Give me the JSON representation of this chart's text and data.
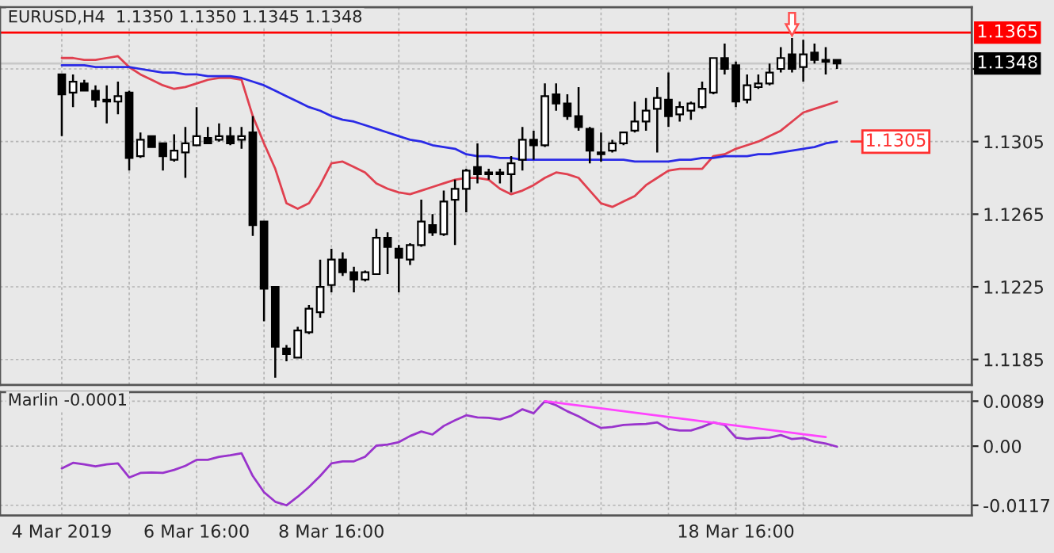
{
  "chart_data": [
    {
      "type": "candlestick",
      "title": "EURUSD,H4  1.1350 1.1350 1.1345 1.1348",
      "categories": [
        null,
        null,
        null,
        null,
        null,
        null,
        null,
        null,
        null,
        null,
        null,
        null,
        null,
        null,
        null,
        null,
        null,
        null,
        null,
        null,
        null,
        null,
        null,
        null,
        null,
        null,
        null,
        null,
        null,
        null,
        null,
        null,
        null,
        null,
        null,
        null,
        null,
        null,
        null,
        null,
        null,
        null,
        null,
        null,
        null,
        null,
        null,
        null,
        null,
        null,
        null,
        null,
        null,
        null,
        null,
        null,
        null,
        null,
        null,
        null,
        null,
        null,
        null,
        null,
        null,
        null,
        null,
        null,
        null,
        null
      ],
      "ohlc": [
        [
          1.1342,
          1.1342,
          1.1308,
          1.1331
        ],
        [
          1.1332,
          1.1342,
          1.1324,
          1.1338
        ],
        [
          1.1337,
          1.1339,
          1.1333,
          1.1333
        ],
        [
          1.1333,
          1.1336,
          1.1324,
          1.1328
        ],
        [
          1.1328,
          1.1336,
          1.1315,
          1.1327
        ],
        [
          1.1327,
          1.1338,
          1.132,
          1.133
        ],
        [
          1.1332,
          1.1333,
          1.1289,
          1.1296
        ],
        [
          1.1297,
          1.131,
          1.1296,
          1.1306
        ],
        [
          1.1308,
          1.1308,
          1.1302,
          1.1302
        ],
        [
          1.1304,
          1.1304,
          1.1289,
          1.1297
        ],
        [
          1.1295,
          1.1309,
          1.1294,
          1.13
        ],
        [
          1.1299,
          1.1313,
          1.1285,
          1.1304
        ],
        [
          1.1303,
          1.1324,
          1.1303,
          1.1308
        ],
        [
          1.1307,
          1.1313,
          1.1304,
          1.1304
        ],
        [
          1.1306,
          1.1315,
          1.1305,
          1.1308
        ],
        [
          1.1308,
          1.1313,
          1.1303,
          1.1304
        ],
        [
          1.1306,
          1.1313,
          1.1301,
          1.1308
        ],
        [
          1.131,
          1.1319,
          1.1253,
          1.1259
        ],
        [
          1.1261,
          1.1261,
          1.1206,
          1.1224
        ],
        [
          1.1225,
          1.1225,
          1.1175,
          1.1192
        ],
        [
          1.1191,
          1.1193,
          1.1184,
          1.1188
        ],
        [
          1.1186,
          1.1203,
          1.1186,
          1.1201
        ],
        [
          1.12,
          1.1215,
          1.1199,
          1.1213
        ],
        [
          1.1211,
          1.124,
          1.1208,
          1.1225
        ],
        [
          1.1226,
          1.1246,
          1.1222,
          1.124
        ],
        [
          1.124,
          1.1244,
          1.1231,
          1.1233
        ],
        [
          1.1233,
          1.1236,
          1.1222,
          1.1229
        ],
        [
          1.1229,
          1.1234,
          1.1228,
          1.1233
        ],
        [
          1.1232,
          1.1257,
          1.1232,
          1.1252
        ],
        [
          1.1252,
          1.1255,
          1.1232,
          1.1247
        ],
        [
          1.1246,
          1.1248,
          1.1222,
          1.1241
        ],
        [
          1.124,
          1.1249,
          1.1237,
          1.1248
        ],
        [
          1.1248,
          1.1273,
          1.1247,
          1.1261
        ],
        [
          1.1259,
          1.1265,
          1.1253,
          1.1255
        ],
        [
          1.1254,
          1.1278,
          1.1253,
          1.1272
        ],
        [
          1.1273,
          1.1284,
          1.1248,
          1.1279
        ],
        [
          1.1279,
          1.129,
          1.1266,
          1.1289
        ],
        [
          1.1291,
          1.1304,
          1.1282,
          1.1287
        ],
        [
          1.1288,
          1.129,
          1.1284,
          1.1287
        ],
        [
          1.1288,
          1.129,
          1.1282,
          1.1287
        ],
        [
          1.1287,
          1.1297,
          1.1277,
          1.1293
        ],
        [
          1.1295,
          1.1313,
          1.1289,
          1.1306
        ],
        [
          1.1306,
          1.1311,
          1.1295,
          1.1303
        ],
        [
          1.1303,
          1.1337,
          1.1302,
          1.133
        ],
        [
          1.1331,
          1.1337,
          1.1322,
          1.1326
        ],
        [
          1.1326,
          1.1331,
          1.1317,
          1.1319
        ],
        [
          1.1319,
          1.1335,
          1.1311,
          1.1313
        ],
        [
          1.1312,
          1.1313,
          1.1293,
          1.13
        ],
        [
          1.1299,
          1.131,
          1.1294,
          1.1298
        ],
        [
          1.13,
          1.1306,
          1.1299,
          1.1304
        ],
        [
          1.1304,
          1.131,
          1.1303,
          1.131
        ],
        [
          1.1311,
          1.1327,
          1.131,
          1.1316
        ],
        [
          1.1316,
          1.1329,
          1.1311,
          1.1322
        ],
        [
          1.1323,
          1.1335,
          1.1299,
          1.1329
        ],
        [
          1.1328,
          1.1343,
          1.1313,
          1.1319
        ],
        [
          1.132,
          1.1327,
          1.1316,
          1.1324
        ],
        [
          1.1322,
          1.1327,
          1.1317,
          1.1326
        ],
        [
          1.1324,
          1.1338,
          1.1323,
          1.1334
        ],
        [
          1.1332,
          1.1351,
          1.1331,
          1.1351
        ],
        [
          1.1351,
          1.1359,
          1.1342,
          1.1345
        ],
        [
          1.1347,
          1.1349,
          1.1324,
          1.1327
        ],
        [
          1.1328,
          1.1342,
          1.1326,
          1.1336
        ],
        [
          1.1335,
          1.1342,
          1.1334,
          1.1337
        ],
        [
          1.1337,
          1.1348,
          1.1336,
          1.1343
        ],
        [
          1.1345,
          1.1357,
          1.1343,
          1.1351
        ],
        [
          1.1353,
          1.1362,
          1.1343,
          1.1345
        ],
        [
          1.1346,
          1.1361,
          1.1338,
          1.1353
        ],
        [
          1.1354,
          1.1359,
          1.1348,
          1.135
        ],
        [
          1.135,
          1.1357,
          1.1342,
          1.1349
        ],
        [
          1.135,
          1.135,
          1.1345,
          1.1348
        ]
      ],
      "series": [
        {
          "type": "line",
          "color": "#e0404f",
          "values": [
            1.1351,
            1.1351,
            1.135,
            1.135,
            1.1351,
            1.1352,
            1.1346,
            1.1342,
            1.1339,
            1.1336,
            1.1334,
            1.1335,
            1.1337,
            1.1339,
            1.134,
            1.134,
            1.1339,
            1.1319,
            1.1304,
            1.129,
            1.1271,
            1.1268,
            1.1271,
            1.1281,
            1.1293,
            1.1294,
            1.1291,
            1.1288,
            1.1282,
            1.1279,
            1.1277,
            1.1276,
            1.1278,
            1.128,
            1.1282,
            1.1284,
            1.1285,
            1.1285,
            1.1284,
            1.1279,
            1.1276,
            1.1278,
            1.1281,
            1.1285,
            1.1288,
            1.1287,
            1.1285,
            1.1278,
            1.1271,
            1.1269,
            1.1272,
            1.1275,
            1.1281,
            1.1285,
            1.1289,
            1.129,
            1.129,
            1.129,
            1.1297,
            1.1298,
            1.1301,
            1.1303,
            1.1305,
            1.1308,
            1.1311,
            1.1316,
            1.1321,
            1.1323,
            1.1325,
            1.1327
          ]
        },
        {
          "type": "line",
          "color": "#2a2ae6",
          "values": [
            1.1347,
            1.1347,
            1.1347,
            1.1346,
            1.1346,
            1.1346,
            1.1346,
            1.1345,
            1.1344,
            1.1343,
            1.1343,
            1.1342,
            1.1342,
            1.1341,
            1.1341,
            1.1341,
            1.134,
            1.1338,
            1.1336,
            1.1333,
            1.133,
            1.1327,
            1.1324,
            1.1322,
            1.1319,
            1.1317,
            1.1316,
            1.1314,
            1.1312,
            1.131,
            1.1308,
            1.1306,
            1.1305,
            1.1303,
            1.1302,
            1.1301,
            1.1298,
            1.1297,
            1.1297,
            1.1296,
            1.1296,
            1.1295,
            1.1295,
            1.1295,
            1.1295,
            1.1295,
            1.1295,
            1.1295,
            1.1295,
            1.1295,
            1.1295,
            1.1294,
            1.1294,
            1.1294,
            1.1294,
            1.1295,
            1.1295,
            1.1296,
            1.1296,
            1.1297,
            1.1297,
            1.1297,
            1.1298,
            1.1298,
            1.1299,
            1.13,
            1.1301,
            1.1302,
            1.1304,
            1.1305
          ]
        }
      ],
      "ylim": [
        1.1171,
        1.1379
      ],
      "yticks": [
        1.1185,
        1.1225,
        1.1265,
        1.1305,
        {
          "value": 1.1345,
          "label": null
        }
      ],
      "ref_lines": [
        {
          "axis": "y",
          "value": 1.1365,
          "label": "1.1365",
          "color": "#ff0000"
        },
        {
          "axis": "y",
          "value": 1.1348,
          "label": "1.1348",
          "color": "#c8c8c8"
        }
      ],
      "annotations": [
        "1.1305"
      ],
      "grid": true,
      "tick_labels": "y"
    },
    {
      "type": "line",
      "title": "Marlin -0.0001",
      "categories": [
        "4 Mar 2019",
        null,
        null,
        null,
        null,
        null,
        null,
        null,
        null,
        null,
        null,
        null,
        "6 Mar 16:00",
        null,
        null,
        null,
        null,
        null,
        null,
        null,
        null,
        null,
        null,
        null,
        "8 Mar 16:00",
        null,
        null,
        null,
        null,
        null,
        null,
        null,
        null,
        null,
        null,
        null,
        null,
        null,
        null,
        null,
        null,
        null,
        null,
        null,
        null,
        null,
        null,
        null,
        null,
        null,
        null,
        null,
        null,
        null,
        null,
        null,
        null,
        null,
        null,
        null,
        "18 Mar 16:00",
        null,
        null,
        null,
        null,
        null,
        null,
        null,
        null,
        null
      ],
      "series": [
        {
          "color": "#9933cc",
          "values": [
            -0.0044,
            -0.0033,
            -0.0036,
            -0.004,
            -0.0036,
            -0.0034,
            -0.0062,
            -0.0053,
            -0.0052,
            -0.0053,
            -0.0047,
            -0.0039,
            -0.0027,
            -0.0027,
            -0.0021,
            -0.0018,
            -0.0014,
            -0.0059,
            -0.0091,
            -0.011,
            -0.0117,
            -0.01,
            -0.0081,
            -0.0059,
            -0.0034,
            -0.003,
            -0.003,
            -0.0021,
            0.0001,
            0.0003,
            0.0008,
            0.002,
            0.0029,
            0.0023,
            0.004,
            0.0051,
            0.0061,
            0.0057,
            0.0056,
            0.0053,
            0.006,
            0.0073,
            0.0065,
            0.0089,
            0.0081,
            0.0069,
            0.0059,
            0.0047,
            0.0036,
            0.0038,
            0.0042,
            0.0043,
            0.0044,
            0.0047,
            0.0034,
            0.0031,
            0.0031,
            0.0038,
            0.0047,
            0.0042,
            0.0017,
            0.0014,
            0.0016,
            0.0017,
            0.0022,
            0.0014,
            0.0016,
            0.0009,
            0.0005,
            -0.0001
          ]
        },
        {
          "color": "#ff44ff",
          "values": [
            null,
            null,
            null,
            null,
            null,
            null,
            null,
            null,
            null,
            null,
            null,
            null,
            null,
            null,
            null,
            null,
            null,
            null,
            null,
            null,
            null,
            null,
            null,
            null,
            null,
            null,
            null,
            null,
            null,
            null,
            null,
            null,
            null,
            null,
            null,
            null,
            null,
            null,
            null,
            null,
            null,
            null,
            null,
            0.0089,
            null,
            null,
            null,
            null,
            null,
            null,
            null,
            null,
            null,
            null,
            null,
            null,
            null,
            null,
            null,
            null,
            null,
            null,
            null,
            null,
            null,
            null,
            null,
            null,
            0.0018,
            null
          ]
        }
      ],
      "ylim": [
        -0.0137,
        0.0107
      ],
      "yticks": [
        0.0089,
        {
          "value": 0,
          "label": "0.00"
        },
        -0.0117
      ],
      "grid": true
    }
  ]
}
